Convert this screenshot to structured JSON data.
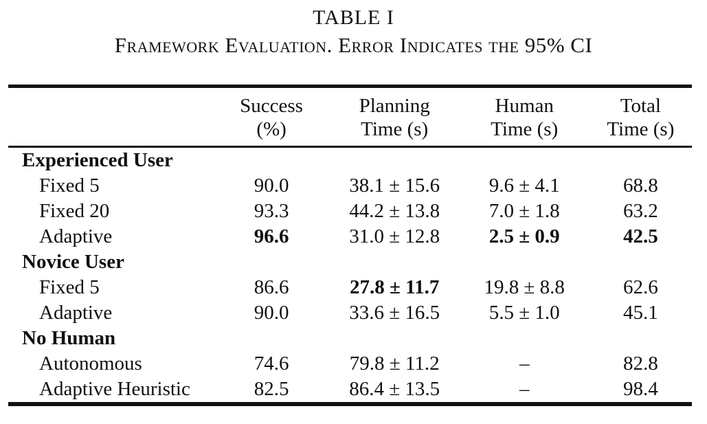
{
  "table": {
    "title": "TABLE I",
    "caption": "Framework Evaluation. Error Indicates the 95% CI",
    "header": {
      "success": {
        "line1": "Success",
        "line2": "(%)"
      },
      "planning": {
        "line1": "Planning",
        "line2": "Time (s)"
      },
      "human": {
        "line1": "Human",
        "line2": "Time (s)"
      },
      "total": {
        "line1": "Total",
        "line2": "Time (s)"
      }
    },
    "rows": [
      {
        "type": "section",
        "label": "Experienced User"
      },
      {
        "type": "data",
        "label": "Fixed 5",
        "cells": [
          "90.0",
          "38.1 ± 15.6",
          "9.6 ± 4.1",
          "68.8"
        ]
      },
      {
        "type": "data",
        "label": "Fixed 20",
        "cells": [
          "93.3",
          "44.2 ± 13.8",
          "7.0 ± 1.8",
          "63.2"
        ]
      },
      {
        "type": "data",
        "label": "Adaptive",
        "cells": [
          "96.6",
          "31.0 ± 12.8",
          "2.5 ± 0.9",
          "42.5"
        ],
        "bold_cells": [
          0,
          2,
          3
        ]
      },
      {
        "type": "section",
        "label": "Novice User"
      },
      {
        "type": "data",
        "label": "Fixed 5",
        "cells": [
          "86.6",
          "27.8 ± 11.7",
          "19.8 ± 8.8",
          "62.6"
        ],
        "bold_cells": [
          1
        ]
      },
      {
        "type": "data",
        "label": "Adaptive",
        "cells": [
          "90.0",
          "33.6 ± 16.5",
          "5.5 ± 1.0",
          "45.1"
        ]
      },
      {
        "type": "section",
        "label": "No Human"
      },
      {
        "type": "data",
        "label": "Autonomous",
        "cells": [
          "74.6",
          "79.8 ± 11.2",
          "–",
          "82.8"
        ]
      },
      {
        "type": "data",
        "label": "Adaptive Heuristic",
        "cells": [
          "82.5",
          "86.4 ± 13.5",
          "–",
          "98.4"
        ]
      }
    ]
  }
}
